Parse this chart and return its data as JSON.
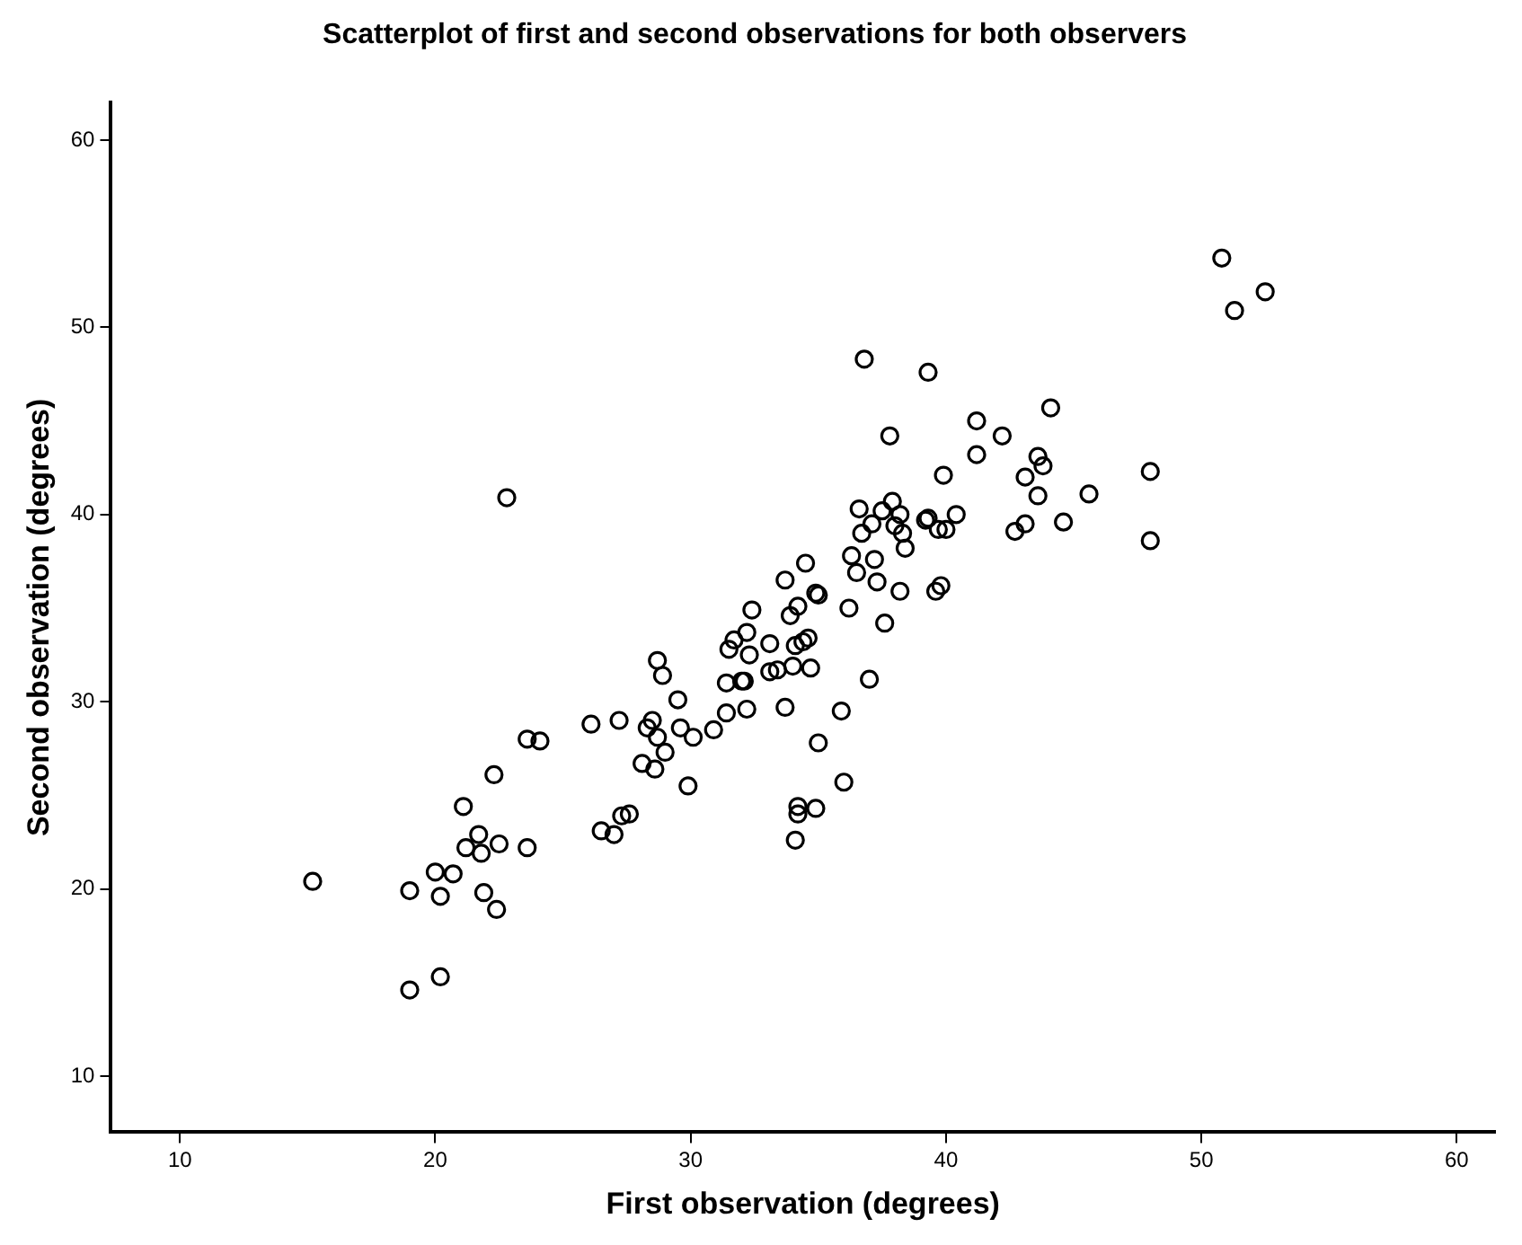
{
  "chart_data": {
    "type": "scatter",
    "title": "Scatterplot of first and second observations for both observers",
    "xlabel": "First observation (degrees)",
    "ylabel": "Second observation (degrees)",
    "x": [
      15.2,
      19,
      19,
      20,
      20.2,
      20.2,
      20.7,
      21.1,
      21.2,
      21.7,
      21.8,
      21.9,
      22.3,
      22.4,
      22.5,
      22.8,
      23.6,
      23.6,
      24.1,
      26.1,
      26.5,
      27,
      27.2,
      27.3,
      27.6,
      28.1,
      28.3,
      28.5,
      28.6,
      28.7,
      28.7,
      28.9,
      29,
      29.5,
      29.6,
      29.9,
      30.1,
      30.9,
      31.4,
      31.4,
      31.5,
      31.7,
      32,
      32.1,
      32.2,
      32.2,
      32.3,
      32.4,
      33.1,
      33.1,
      33.4,
      33.7,
      33.7,
      33.9,
      34,
      34.1,
      34.1,
      34.2,
      34.2,
      34.2,
      34.4,
      34.5,
      34.6,
      34.7,
      34.9,
      35,
      35,
      34.9,
      35.9,
      36,
      36.2,
      36.3,
      36.5,
      36.6,
      36.7,
      36.8,
      37,
      37.1,
      37.2,
      37.3,
      37.5,
      37.6,
      37.8,
      37.9,
      38,
      38.2,
      38.2,
      38.3,
      38.4,
      39.2,
      39.3,
      39.3,
      39.6,
      39.8,
      39.7,
      39.9,
      40,
      40.4,
      41.2,
      41.2,
      42.2,
      42.7,
      43.1,
      43.1,
      43.6,
      43.6,
      43.8,
      44.1,
      44.6,
      45.6,
      48,
      48,
      50.8,
      51.3,
      52.5
    ],
    "values": [
      20.4,
      19.9,
      14.6,
      20.9,
      19.6,
      15.3,
      20.8,
      24.4,
      22.2,
      22.9,
      21.9,
      19.8,
      26.1,
      18.9,
      22.4,
      40.9,
      22.2,
      28,
      27.9,
      28.8,
      23.1,
      22.9,
      29,
      23.9,
      24,
      26.7,
      28.6,
      29,
      26.4,
      32.2,
      28.1,
      31.4,
      27.3,
      30.1,
      28.6,
      25.5,
      28.1,
      28.5,
      31,
      29.4,
      32.8,
      33.3,
      31.1,
      31.1,
      33.7,
      29.6,
      32.5,
      34.9,
      33.1,
      31.6,
      31.7,
      36.5,
      29.7,
      34.6,
      31.9,
      33,
      22.6,
      35.1,
      24.4,
      24,
      33.2,
      37.4,
      33.4,
      31.8,
      35.8,
      35.7,
      27.8,
      24.3,
      29.5,
      25.7,
      35,
      37.8,
      36.9,
      40.3,
      39,
      48.3,
      31.2,
      39.5,
      37.6,
      36.4,
      40.2,
      34.2,
      44.2,
      40.7,
      39.4,
      35.9,
      40,
      39,
      38.2,
      39.7,
      39.8,
      47.6,
      35.9,
      36.2,
      39.2,
      42.1,
      39.2,
      40,
      45,
      43.2,
      44.2,
      39.1,
      42,
      39.5,
      43.1,
      41,
      42.6,
      45.7,
      39.6,
      41.1,
      42.3,
      38.6,
      53.7,
      50.9,
      51.9
    ],
    "color": "#000000",
    "marker": "circle",
    "xlim": [
      7.3,
      61.5
    ],
    "ylim": [
      7,
      62
    ],
    "xticks": [
      10,
      20,
      30,
      40,
      50,
      60
    ],
    "yticks": [
      10,
      20,
      30,
      40,
      50,
      60
    ],
    "grid": false,
    "legend": false
  }
}
